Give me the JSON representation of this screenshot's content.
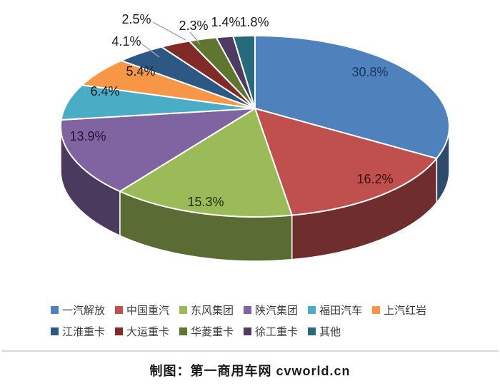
{
  "chart_data": {
    "type": "pie",
    "effect": "3d",
    "categories": [
      "一汽解放",
      "中国重汽",
      "东风集团",
      "陕汽集团",
      "福田汽车",
      "上汽红岩",
      "江淮重卡",
      "大运重卡",
      "华菱重卡",
      "徐工重卡",
      "其他"
    ],
    "values": [
      30.8,
      16.2,
      15.3,
      13.9,
      6.4,
      5.4,
      4.1,
      2.5,
      2.3,
      1.4,
      1.8
    ],
    "unit": "%",
    "colors": [
      "#4F81BD",
      "#C0504D",
      "#9BBB59",
      "#8064A2",
      "#4BACC6",
      "#F79646",
      "#2E5884",
      "#802B27",
      "#5F7530",
      "#4D3B62",
      "#276A7C"
    ],
    "label_colors": [
      "#17375E",
      "#38100F",
      "#222B10",
      "#231533",
      "#1A1A1A",
      "#1A1A1A",
      "#1A1A1A",
      "#1A1A1A",
      "#1A1A1A",
      "#1A1A1A",
      "#1A1A1A"
    ],
    "data_labels": [
      "30.8%",
      "16.2%",
      "15.3%",
      "13.9%",
      "6.4%",
      "5.4%",
      "4.1%",
      "2.5%",
      "2.3%",
      "1.4%",
      "1.8%"
    ],
    "leader_line_color": "#A6A6A6",
    "legend_position": "bottom",
    "grid": false,
    "title": ""
  },
  "footer": {
    "text": "制图：第一商用车网 cvworld.cn"
  }
}
